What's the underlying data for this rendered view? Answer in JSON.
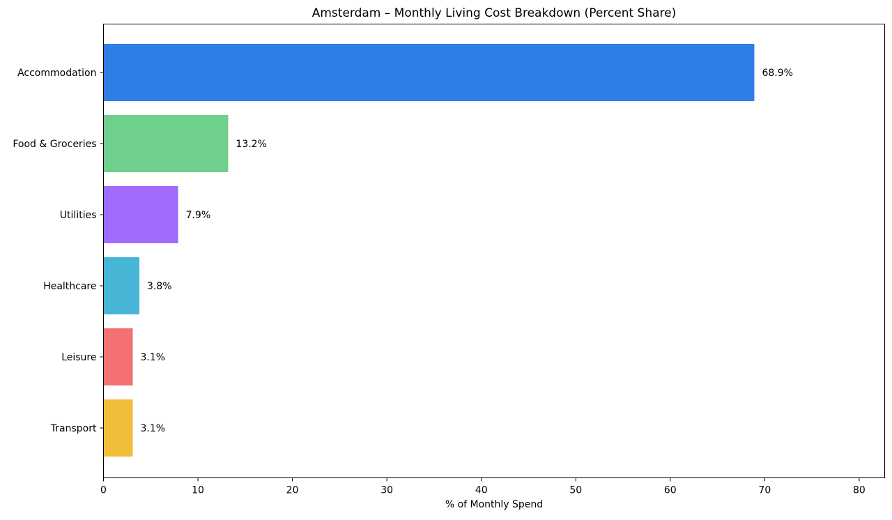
{
  "chart_data": {
    "type": "bar",
    "orientation": "horizontal",
    "title": "Amsterdam – Monthly Living Cost Breakdown (Percent Share)",
    "xlabel": "% of Monthly Spend",
    "ylabel": "",
    "xlim": [
      0,
      82.7
    ],
    "xticks": [
      0,
      10,
      20,
      30,
      40,
      50,
      60,
      70,
      80
    ],
    "grid": false,
    "legend": "none",
    "categories": [
      "Accommodation",
      "Food & Groceries",
      "Utilities",
      "Healthcare",
      "Leisure",
      "Transport"
    ],
    "values": [
      68.9,
      13.2,
      7.9,
      3.8,
      3.1,
      3.1
    ],
    "value_labels": [
      "68.9%",
      "13.2%",
      "7.9%",
      "3.8%",
      "3.1%",
      "3.1%"
    ],
    "colors": [
      "#2f7ee6",
      "#6fcf8c",
      "#9f6cfb",
      "#47b6d6",
      "#f47171",
      "#f2be3a"
    ]
  }
}
